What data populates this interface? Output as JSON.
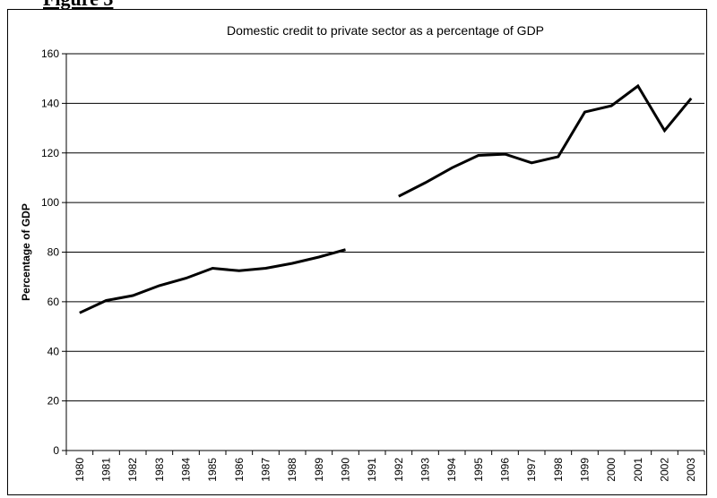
{
  "figure_label": "Figure 3",
  "chart_data": {
    "type": "line",
    "title": "Domestic credit to private sector as a percentage of GDP",
    "xlabel": "",
    "ylabel": "Percentage of GDP",
    "ylim": [
      0,
      160
    ],
    "yticks": [
      0,
      20,
      40,
      60,
      80,
      100,
      120,
      140,
      160
    ],
    "grid": true,
    "legend": "none",
    "line_color": "#000000",
    "categories": [
      "1980",
      "1981",
      "1982",
      "1983",
      "1984",
      "1985",
      "1986",
      "1987",
      "1988",
      "1989",
      "1990",
      "1991",
      "1992",
      "1993",
      "1994",
      "1995",
      "1996",
      "1997",
      "1998",
      "1999",
      "2000",
      "2001",
      "2002",
      "2003"
    ],
    "series": [
      {
        "values": [
          55.5,
          60.5,
          62.5,
          66.5,
          69.5,
          73.5,
          72.5,
          73.5,
          75.5,
          78,
          81,
          null,
          102.5,
          108,
          114,
          119,
          119.5,
          116,
          118.5,
          136.5,
          139,
          147,
          129,
          142
        ]
      }
    ]
  }
}
